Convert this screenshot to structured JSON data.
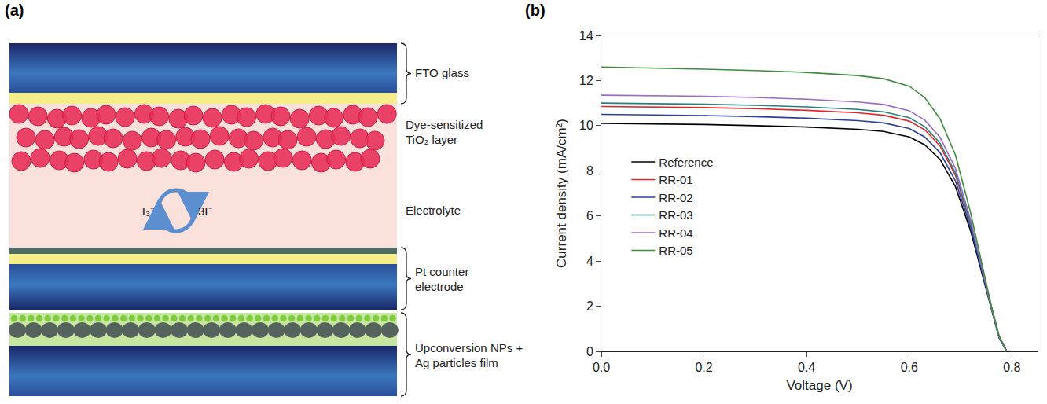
{
  "diagram": {
    "panel_label": "(a)",
    "layers": [
      {
        "label": "FTO glass"
      },
      {
        "label": "Dye-sensitized TiO₂ layer"
      },
      {
        "label": "Electrolyte"
      },
      {
        "label": "Pt counter electrode"
      },
      {
        "label": "Upconversion NPs + Ag particles film"
      }
    ],
    "redox": {
      "left": "I₃⁻",
      "right": "3I⁻"
    }
  },
  "chart_data": {
    "panel_label": "(b)",
    "type": "line",
    "x_label": "Voltage (V)",
    "y_label": "Current density (mA/cm²)",
    "x": [
      0,
      0.1,
      0.2,
      0.3,
      0.4,
      0.5,
      0.55,
      0.6,
      0.63,
      0.66,
      0.69,
      0.72,
      0.74,
      0.76,
      0.775,
      0.79
    ],
    "series": [
      {
        "name": "Reference",
        "color": "#000000",
        "values": [
          10.1,
          10.08,
          10.05,
          10.0,
          9.94,
          9.84,
          9.74,
          9.5,
          9.15,
          8.5,
          7.3,
          5.3,
          3.6,
          1.8,
          0.6,
          0
        ]
      },
      {
        "name": "RR-01",
        "color": "#e3262b",
        "values": [
          10.85,
          10.83,
          10.8,
          10.75,
          10.68,
          10.57,
          10.46,
          10.2,
          9.82,
          9.1,
          7.8,
          5.6,
          3.8,
          1.9,
          0.65,
          0
        ]
      },
      {
        "name": "RR-02",
        "color": "#2b3f9e",
        "values": [
          10.5,
          10.48,
          10.45,
          10.4,
          10.33,
          10.22,
          10.12,
          9.87,
          9.5,
          8.8,
          7.55,
          5.45,
          3.7,
          1.85,
          0.6,
          0
        ]
      },
      {
        "name": "RR-03",
        "color": "#2a7d78",
        "values": [
          11.0,
          10.98,
          10.95,
          10.9,
          10.83,
          10.72,
          10.61,
          10.35,
          9.96,
          9.22,
          7.9,
          5.65,
          3.85,
          1.9,
          0.65,
          0
        ]
      },
      {
        "name": "RR-04",
        "color": "#9a6cc4",
        "values": [
          11.35,
          11.33,
          11.3,
          11.25,
          11.17,
          11.05,
          10.94,
          10.66,
          10.25,
          9.48,
          8.1,
          5.8,
          3.9,
          1.95,
          0.65,
          0
        ]
      },
      {
        "name": "RR-05",
        "color": "#3f8c3c",
        "values": [
          12.6,
          12.56,
          12.5,
          12.44,
          12.36,
          12.22,
          12.08,
          11.75,
          11.25,
          10.3,
          8.7,
          6.1,
          4.05,
          2.0,
          0.7,
          0
        ]
      }
    ],
    "xlim": [
      0,
      0.85
    ],
    "xticks": [
      {
        "value": 0,
        "label": "0.0"
      },
      {
        "value": 0.2,
        "label": "0.2"
      },
      {
        "value": 0.4,
        "label": "0.4"
      },
      {
        "value": 0.6,
        "label": "0.6"
      },
      {
        "value": 0.8,
        "label": "0.8"
      }
    ],
    "ylim": [
      0,
      14
    ],
    "yticks": [
      0,
      2,
      4,
      6,
      8,
      10,
      12,
      14
    ],
    "grid": false,
    "legend": "left"
  }
}
